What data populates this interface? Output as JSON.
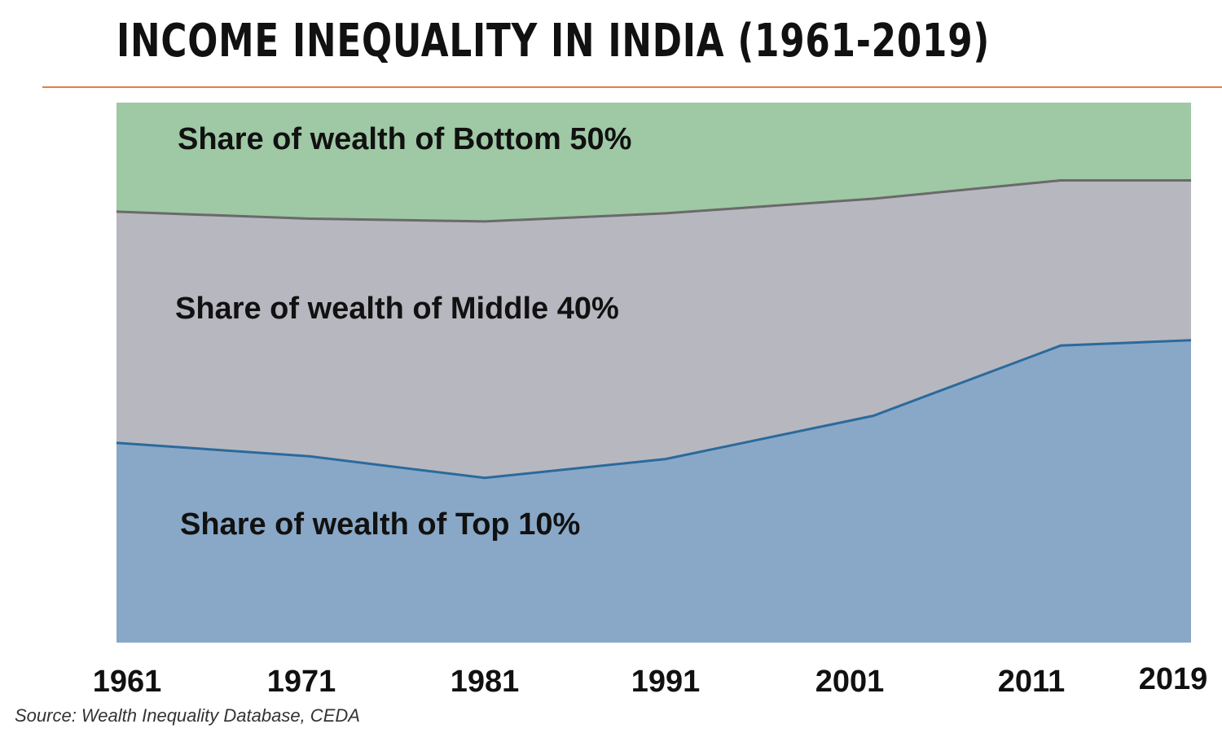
{
  "title": "INCOME INEQUALITY IN INDIA (1961-2019)",
  "source": "Source: Wealth Inequality Database, CEDA",
  "chart_data": {
    "type": "area",
    "stacked": true,
    "normalized": true,
    "x": [
      "1961",
      "1971",
      "1981",
      "1991",
      "2001",
      "2011",
      "2019"
    ],
    "series": [
      {
        "name": "Share of wealth of Top 10%",
        "values": [
          37.0,
          34.5,
          30.5,
          34.0,
          42.0,
          55.0,
          56.0
        ],
        "color": "#89a8c7",
        "line": "#2b6a9c"
      },
      {
        "name": "Share of wealth of Middle 40%",
        "values": [
          42.8,
          44.0,
          47.5,
          45.5,
          40.2,
          30.6,
          29.6
        ],
        "color": "#b7b7c0",
        "line": "#6a6a6a"
      },
      {
        "name": "Share of wealth of Bottom 50%",
        "values": [
          20.2,
          21.5,
          22.0,
          20.5,
          17.8,
          14.4,
          14.4
        ],
        "color": "#9fc8a5",
        "line": null
      }
    ],
    "ylim": [
      0,
      100
    ],
    "grid": false,
    "legend": "inline labels"
  }
}
